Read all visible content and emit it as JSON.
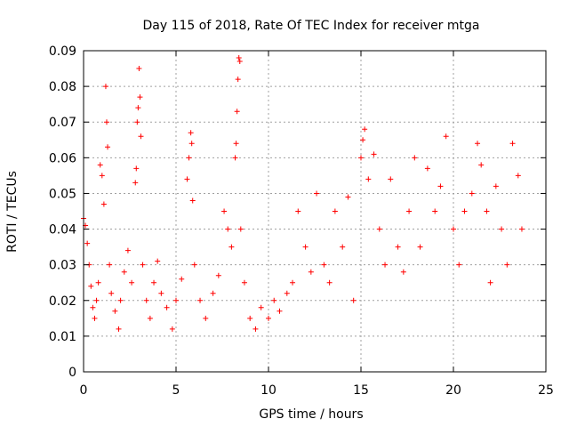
{
  "chart_data": {
    "type": "scatter",
    "title": "Day 115 of 2018, Rate Of TEC Index for receiver mtga",
    "xlabel": "GPS time / hours",
    "ylabel": "ROTI / TECUs",
    "xlim": [
      0,
      25
    ],
    "ylim": [
      0,
      0.09
    ],
    "x_ticks": [
      "0",
      "5",
      "10",
      "15",
      "20",
      "25"
    ],
    "y_ticks": [
      "0",
      "0.01",
      "0.02",
      "0.03",
      "0.04",
      "0.05",
      "0.06",
      "0.07",
      "0.08",
      "0.09"
    ],
    "grid": true,
    "marker": "plus",
    "color": "#ff0000",
    "series": [
      {
        "name": "ROTI",
        "points": [
          [
            0.0,
            0.043
          ],
          [
            0.1,
            0.041
          ],
          [
            0.2,
            0.036
          ],
          [
            0.3,
            0.03
          ],
          [
            0.4,
            0.024
          ],
          [
            0.5,
            0.018
          ],
          [
            0.6,
            0.015
          ],
          [
            0.7,
            0.02
          ],
          [
            0.8,
            0.025
          ],
          [
            0.9,
            0.058
          ],
          [
            1.0,
            0.055
          ],
          [
            1.1,
            0.047
          ],
          [
            1.2,
            0.08
          ],
          [
            1.25,
            0.07
          ],
          [
            1.3,
            0.063
          ],
          [
            1.4,
            0.03
          ],
          [
            1.5,
            0.022
          ],
          [
            1.7,
            0.017
          ],
          [
            1.9,
            0.012
          ],
          [
            2.0,
            0.02
          ],
          [
            2.2,
            0.028
          ],
          [
            2.4,
            0.034
          ],
          [
            2.6,
            0.025
          ],
          [
            2.8,
            0.053
          ],
          [
            2.85,
            0.057
          ],
          [
            2.9,
            0.07
          ],
          [
            2.95,
            0.074
          ],
          [
            3.0,
            0.085
          ],
          [
            3.05,
            0.077
          ],
          [
            3.1,
            0.066
          ],
          [
            3.2,
            0.03
          ],
          [
            3.4,
            0.02
          ],
          [
            3.6,
            0.015
          ],
          [
            3.8,
            0.025
          ],
          [
            4.0,
            0.031
          ],
          [
            4.2,
            0.022
          ],
          [
            4.5,
            0.018
          ],
          [
            4.8,
            0.012
          ],
          [
            5.0,
            0.02
          ],
          [
            5.3,
            0.026
          ],
          [
            5.6,
            0.054
          ],
          [
            5.7,
            0.06
          ],
          [
            5.8,
            0.067
          ],
          [
            5.85,
            0.064
          ],
          [
            5.9,
            0.048
          ],
          [
            6.0,
            0.03
          ],
          [
            6.3,
            0.02
          ],
          [
            6.6,
            0.015
          ],
          [
            7.0,
            0.022
          ],
          [
            7.3,
            0.027
          ],
          [
            7.6,
            0.045
          ],
          [
            7.8,
            0.04
          ],
          [
            8.0,
            0.035
          ],
          [
            8.2,
            0.06
          ],
          [
            8.25,
            0.064
          ],
          [
            8.3,
            0.073
          ],
          [
            8.35,
            0.082
          ],
          [
            8.4,
            0.088
          ],
          [
            8.45,
            0.087
          ],
          [
            8.5,
            0.04
          ],
          [
            8.7,
            0.025
          ],
          [
            9.0,
            0.015
          ],
          [
            9.3,
            0.012
          ],
          [
            9.6,
            0.018
          ],
          [
            10.0,
            0.015
          ],
          [
            10.3,
            0.02
          ],
          [
            10.6,
            0.017
          ],
          [
            11.0,
            0.022
          ],
          [
            11.3,
            0.025
          ],
          [
            11.6,
            0.045
          ],
          [
            12.0,
            0.035
          ],
          [
            12.3,
            0.028
          ],
          [
            12.6,
            0.05
          ],
          [
            13.0,
            0.03
          ],
          [
            13.3,
            0.025
          ],
          [
            13.6,
            0.045
          ],
          [
            14.0,
            0.035
          ],
          [
            14.3,
            0.049
          ],
          [
            14.6,
            0.02
          ],
          [
            15.0,
            0.06
          ],
          [
            15.1,
            0.065
          ],
          [
            15.2,
            0.068
          ],
          [
            15.4,
            0.054
          ],
          [
            15.7,
            0.061
          ],
          [
            16.0,
            0.04
          ],
          [
            16.3,
            0.03
          ],
          [
            16.6,
            0.054
          ],
          [
            17.0,
            0.035
          ],
          [
            17.3,
            0.028
          ],
          [
            17.6,
            0.045
          ],
          [
            17.9,
            0.06
          ],
          [
            18.2,
            0.035
          ],
          [
            18.6,
            0.057
          ],
          [
            19.0,
            0.045
          ],
          [
            19.3,
            0.052
          ],
          [
            19.6,
            0.066
          ],
          [
            20.0,
            0.04
          ],
          [
            20.3,
            0.03
          ],
          [
            20.6,
            0.045
          ],
          [
            21.0,
            0.05
          ],
          [
            21.3,
            0.064
          ],
          [
            21.5,
            0.058
          ],
          [
            21.8,
            0.045
          ],
          [
            22.0,
            0.025
          ],
          [
            22.3,
            0.052
          ],
          [
            22.6,
            0.04
          ],
          [
            22.9,
            0.03
          ],
          [
            23.2,
            0.064
          ],
          [
            23.5,
            0.055
          ],
          [
            23.7,
            0.04
          ]
        ]
      }
    ]
  }
}
